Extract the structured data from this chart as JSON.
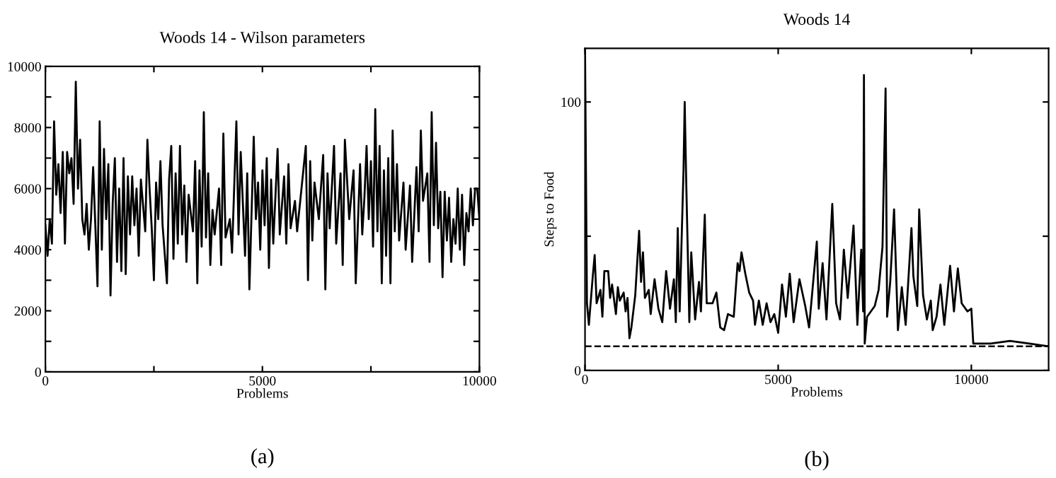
{
  "chart_data": [
    {
      "type": "line",
      "title": "Woods 14 - Wilson parameters",
      "xlabel": "Problems",
      "annotations": [
        "(a)"
      ],
      "xlim": [
        0,
        10000
      ],
      "ylim": [
        0,
        10000
      ],
      "xticks": [
        0,
        {
          "value": 2500,
          "label": null
        },
        5000,
        {
          "value": 7500,
          "label": null
        },
        10000
      ],
      "yticks": [
        0,
        {
          "value": 1000,
          "label": null
        },
        2000,
        {
          "value": 3000,
          "label": null
        },
        4000,
        {
          "value": 5000,
          "label": null
        },
        6000,
        {
          "value": 7000,
          "label": null
        },
        8000,
        {
          "value": 9000,
          "label": null
        },
        10000
      ],
      "grid": false,
      "legend": false,
      "marker": "none",
      "line_style": "solid",
      "series": [
        {
          "color": "#000000",
          "x": [
            0,
            50,
            100,
            150,
            200,
            250,
            300,
            350,
            400,
            450,
            500,
            550,
            600,
            650,
            700,
            750,
            800,
            850,
            900,
            950,
            1000,
            1050,
            1100,
            1150,
            1200,
            1250,
            1300,
            1350,
            1400,
            1450,
            1500,
            1550,
            1600,
            1650,
            1700,
            1750,
            1800,
            1850,
            1900,
            1950,
            2000,
            2050,
            2100,
            2150,
            2200,
            2300,
            2350,
            2400,
            2450,
            2500,
            2550,
            2600,
            2650,
            2700,
            2800,
            2850,
            2900,
            2950,
            3000,
            3050,
            3100,
            3150,
            3200,
            3250,
            3300,
            3400,
            3450,
            3500,
            3550,
            3600,
            3650,
            3700,
            3750,
            3800,
            3850,
            3900,
            4000,
            4050,
            4100,
            4150,
            4250,
            4300,
            4400,
            4450,
            4500,
            4600,
            4650,
            4700,
            4750,
            4800,
            4850,
            4900,
            4950,
            5000,
            5050,
            5100,
            5150,
            5200,
            5250,
            5350,
            5400,
            5500,
            5550,
            5600,
            5650,
            5750,
            5800,
            6000,
            6050,
            6100,
            6150,
            6200,
            6300,
            6400,
            6450,
            6500,
            6550,
            6650,
            6700,
            6800,
            6850,
            6900,
            7000,
            7100,
            7150,
            7250,
            7300,
            7350,
            7400,
            7450,
            7500,
            7550,
            7600,
            7650,
            7700,
            7750,
            7800,
            7850,
            7900,
            7950,
            8000,
            8050,
            8100,
            8150,
            8250,
            8300,
            8400,
            8450,
            8550,
            8600,
            8650,
            8700,
            8800,
            8850,
            8900,
            8950,
            9000,
            9050,
            9100,
            9150,
            9200,
            9250,
            9300,
            9350,
            9400,
            9450,
            9500,
            9550,
            9600,
            9650,
            9700,
            9750,
            9800,
            9850,
            9900,
            9950,
            10000
          ],
          "values": [
            4800,
            3800,
            5000,
            4200,
            8200,
            5800,
            6800,
            5200,
            7200,
            4200,
            7200,
            6500,
            7000,
            5500,
            9500,
            6000,
            7600,
            5000,
            4500,
            5500,
            4000,
            5000,
            6700,
            4800,
            2800,
            8200,
            4000,
            7300,
            5000,
            6800,
            2500,
            5500,
            7000,
            3600,
            6000,
            3300,
            7000,
            3200,
            6400,
            4500,
            6400,
            4800,
            6000,
            3800,
            6300,
            4600,
            7600,
            6000,
            4700,
            3000,
            6200,
            5000,
            6900,
            4800,
            2900,
            6300,
            7400,
            3700,
            6500,
            4200,
            7400,
            4500,
            6100,
            3600,
            5800,
            4600,
            6900,
            2900,
            6600,
            4100,
            8500,
            4400,
            6500,
            3500,
            5300,
            4500,
            6000,
            3500,
            7800,
            4400,
            5000,
            3900,
            8200,
            4500,
            7200,
            3800,
            6500,
            2700,
            5200,
            7700,
            5000,
            6200,
            4000,
            6600,
            4800,
            7000,
            3400,
            6300,
            4200,
            7300,
            4500,
            6400,
            4200,
            6800,
            4700,
            5600,
            4600,
            7400,
            3000,
            6900,
            4300,
            6200,
            5000,
            7100,
            2700,
            6500,
            4700,
            7400,
            4200,
            6500,
            3500,
            7600,
            5000,
            6600,
            2900,
            6800,
            4500,
            5700,
            7400,
            5000,
            6900,
            4100,
            8600,
            4600,
            7400,
            2900,
            6600,
            3800,
            7000,
            2900,
            7900,
            4600,
            6800,
            4300,
            6200,
            4000,
            6100,
            3600,
            6700,
            4600,
            7900,
            5600,
            6500,
            3600,
            8500,
            4800,
            7500,
            4700,
            5900,
            3100,
            5900,
            4300,
            5700,
            3600,
            5000,
            4200,
            6000,
            4000,
            5800,
            3500,
            5200,
            4600,
            6000,
            4800,
            6000,
            6000,
            5000
          ]
        }
      ]
    },
    {
      "type": "line",
      "title": "Woods 14",
      "xlabel": "Problems",
      "ylabel": "Steps to Food",
      "annotations": [
        "(b)"
      ],
      "xlim": [
        0,
        12000
      ],
      "ylim": [
        0,
        120
      ],
      "xticks": [
        0,
        5000,
        10000
      ],
      "yticks": [
        0,
        {
          "value": 50,
          "label": null
        },
        100
      ],
      "grid": false,
      "legend": false,
      "marker": "none",
      "line_style": "solid",
      "ref_lines": [
        {
          "axis": "y",
          "value": 9,
          "label": null,
          "color": "#000000",
          "line_style": "dashed"
        }
      ],
      "series": [
        {
          "color": "#000000",
          "x": [
            0,
            50,
            100,
            200,
            250,
            300,
            400,
            450,
            500,
            600,
            650,
            700,
            800,
            850,
            900,
            1000,
            1050,
            1100,
            1150,
            1200,
            1300,
            1400,
            1450,
            1500,
            1550,
            1650,
            1700,
            1800,
            1900,
            2000,
            2100,
            2200,
            2300,
            2350,
            2400,
            2450,
            2550,
            2580,
            2620,
            2700,
            2750,
            2850,
            2950,
            3000,
            3100,
            3150,
            3300,
            3400,
            3500,
            3600,
            3700,
            3850,
            3950,
            4000,
            4050,
            4150,
            4250,
            4350,
            4400,
            4500,
            4600,
            4700,
            4800,
            4900,
            5000,
            5100,
            5200,
            5300,
            5400,
            5550,
            5700,
            5800,
            5950,
            6000,
            6050,
            6150,
            6250,
            6400,
            6500,
            6600,
            6700,
            6800,
            6950,
            7050,
            7150,
            7200,
            7220,
            7240,
            7300,
            7500,
            7600,
            7700,
            7780,
            7820,
            7900,
            8000,
            8100,
            8200,
            8300,
            8450,
            8500,
            8600,
            8650,
            8750,
            8850,
            8950,
            9000,
            9100,
            9200,
            9300,
            9450,
            9550,
            9650,
            9750,
            9900,
            10000,
            10050,
            10500,
            11000,
            11500,
            12000
          ],
          "values": [
            120,
            25,
            17,
            35,
            43,
            25,
            30,
            20,
            37,
            37,
            27,
            32,
            21,
            31,
            26,
            29,
            22,
            27,
            12,
            16,
            28,
            52,
            33,
            44,
            27,
            30,
            21,
            34,
            23,
            18,
            37,
            23,
            34,
            18,
            53,
            22,
            75,
            100,
            70,
            18,
            44,
            19,
            33,
            22,
            58,
            25,
            25,
            29,
            16,
            15,
            21,
            20,
            40,
            37,
            44,
            36,
            29,
            26,
            17,
            26,
            17,
            25,
            18,
            21,
            14,
            32,
            20,
            36,
            18,
            34,
            24,
            16,
            40,
            48,
            23,
            40,
            19,
            62,
            25,
            19,
            45,
            27,
            54,
            17,
            45,
            22,
            110,
            10,
            20,
            24,
            30,
            46,
            105,
            20,
            33,
            60,
            15,
            31,
            17,
            53,
            35,
            24,
            60,
            28,
            19,
            26,
            15,
            20,
            32,
            17,
            39,
            22,
            38,
            25,
            22,
            23,
            10,
            10,
            11,
            10,
            9
          ]
        }
      ]
    }
  ]
}
